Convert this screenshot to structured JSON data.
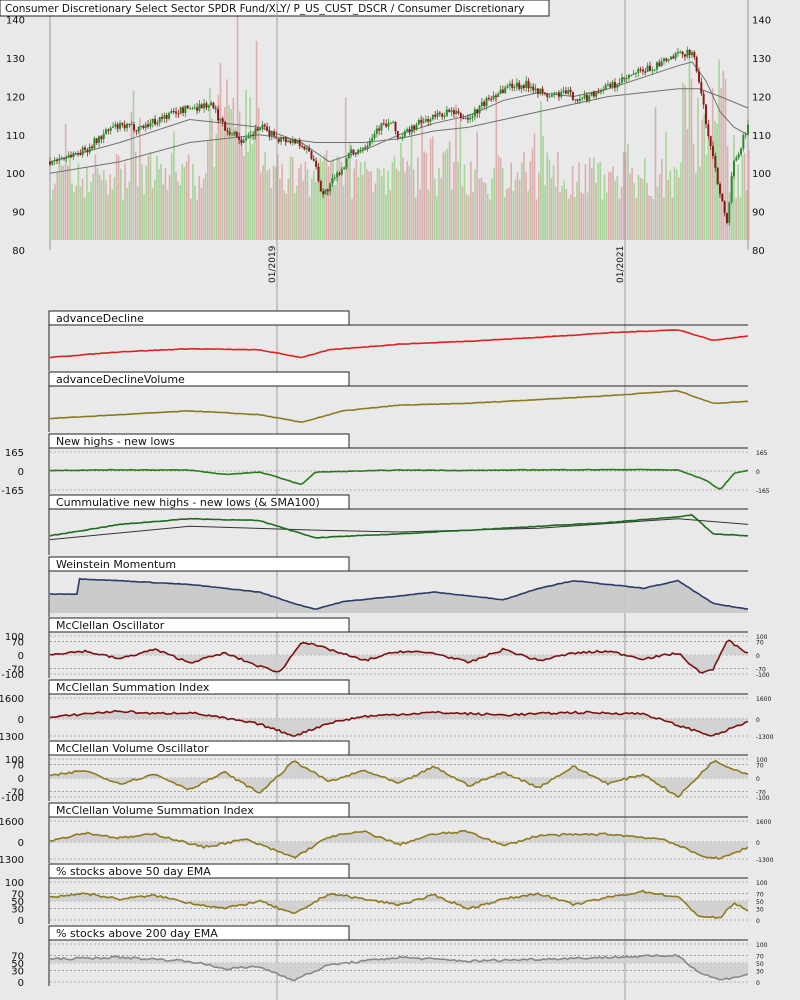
{
  "chart_data": [
    {
      "id": "price",
      "type": "candlestick",
      "title": "Consumer Discretionary Select Sector SPDR Fund/XLY/ P_US_CUST_DSCR / Consumer Discretionary",
      "x_ticks": [
        "01/2019",
        "01/2021"
      ],
      "y_ticks": [
        80,
        90,
        100,
        110,
        120,
        130,
        140
      ],
      "ylim": [
        80,
        142
      ],
      "close_path": [
        [
          0,
          103
        ],
        [
          0.05,
          106
        ],
        [
          0.09,
          112
        ],
        [
          0.13,
          112
        ],
        [
          0.18,
          116
        ],
        [
          0.2,
          117
        ],
        [
          0.23,
          118
        ],
        [
          0.25,
          112
        ],
        [
          0.28,
          108
        ],
        [
          0.3,
          112
        ],
        [
          0.33,
          109
        ],
        [
          0.36,
          108
        ],
        [
          0.38,
          103
        ],
        [
          0.39,
          94
        ],
        [
          0.41,
          99
        ],
        [
          0.43,
          105
        ],
        [
          0.45,
          107
        ],
        [
          0.47,
          112
        ],
        [
          0.49,
          113
        ],
        [
          0.5,
          109
        ],
        [
          0.52,
          112
        ],
        [
          0.54,
          114
        ],
        [
          0.57,
          116
        ],
        [
          0.6,
          114
        ],
        [
          0.62,
          118
        ],
        [
          0.64,
          121
        ],
        [
          0.66,
          123
        ],
        [
          0.69,
          123
        ],
        [
          0.71,
          120
        ],
        [
          0.74,
          121
        ],
        [
          0.76,
          119
        ],
        [
          0.79,
          122
        ],
        [
          0.81,
          123
        ],
        [
          0.84,
          126
        ],
        [
          0.87,
          128
        ],
        [
          0.89,
          130
        ],
        [
          0.92,
          132
        ],
        [
          0.93,
          124
        ],
        [
          0.94,
          113
        ],
        [
          0.96,
          95
        ],
        [
          0.97,
          88
        ],
        [
          0.98,
          104
        ],
        [
          0.99,
          107
        ],
        [
          1,
          113
        ]
      ],
      "ma_short_path": [
        [
          0,
          103
        ],
        [
          0.1,
          108
        ],
        [
          0.2,
          114
        ],
        [
          0.25,
          113
        ],
        [
          0.3,
          112
        ],
        [
          0.36,
          108
        ],
        [
          0.4,
          103
        ],
        [
          0.45,
          106
        ],
        [
          0.5,
          110
        ],
        [
          0.55,
          113
        ],
        [
          0.6,
          115
        ],
        [
          0.65,
          119
        ],
        [
          0.7,
          121
        ],
        [
          0.75,
          120
        ],
        [
          0.8,
          122
        ],
        [
          0.85,
          125
        ],
        [
          0.9,
          128
        ],
        [
          0.92,
          129
        ],
        [
          0.94,
          124
        ],
        [
          0.96,
          116
        ],
        [
          0.98,
          112
        ],
        [
          1,
          110
        ]
      ],
      "ma_long_path": [
        [
          0,
          100
        ],
        [
          0.1,
          103
        ],
        [
          0.2,
          108
        ],
        [
          0.3,
          110
        ],
        [
          0.38,
          108
        ],
        [
          0.45,
          108
        ],
        [
          0.5,
          109
        ],
        [
          0.55,
          111
        ],
        [
          0.6,
          112
        ],
        [
          0.65,
          114
        ],
        [
          0.7,
          116
        ],
        [
          0.75,
          118
        ],
        [
          0.8,
          120
        ],
        [
          0.85,
          121
        ],
        [
          0.9,
          122
        ],
        [
          0.93,
          122
        ],
        [
          0.96,
          120
        ],
        [
          1,
          117
        ]
      ],
      "colors": {
        "up": "#2a8a2a",
        "down": "#8a1a1a",
        "ma": "#707070",
        "vol_up": "#9ccf8c",
        "vol_down": "#d9a5a5"
      }
    },
    {
      "id": "ad",
      "type": "line",
      "title": "advanceDecline",
      "color": "#e02020",
      "path": [
        [
          0,
          0.25
        ],
        [
          0.1,
          0.4
        ],
        [
          0.2,
          0.48
        ],
        [
          0.3,
          0.45
        ],
        [
          0.36,
          0.25
        ],
        [
          0.4,
          0.45
        ],
        [
          0.5,
          0.6
        ],
        [
          0.6,
          0.68
        ],
        [
          0.7,
          0.78
        ],
        [
          0.8,
          0.9
        ],
        [
          0.9,
          0.98
        ],
        [
          0.95,
          0.7
        ],
        [
          1,
          0.82
        ]
      ],
      "annotations": []
    },
    {
      "id": "adv",
      "type": "line",
      "title": "advanceDeclineVolume",
      "color": "#8d7a1f",
      "path": [
        [
          0,
          0.25
        ],
        [
          0.1,
          0.35
        ],
        [
          0.2,
          0.45
        ],
        [
          0.3,
          0.35
        ],
        [
          0.36,
          0.15
        ],
        [
          0.42,
          0.45
        ],
        [
          0.5,
          0.6
        ],
        [
          0.6,
          0.65
        ],
        [
          0.7,
          0.75
        ],
        [
          0.8,
          0.85
        ],
        [
          0.9,
          0.98
        ],
        [
          0.95,
          0.65
        ],
        [
          1,
          0.7
        ]
      ]
    },
    {
      "id": "nhnl",
      "type": "line",
      "title": "New highs - new lows",
      "color": "#2a7a1a",
      "ylim": [
        -165,
        165
      ],
      "left_ticks": [
        "165",
        "0",
        "-165"
      ],
      "right_ticks": [
        "165",
        "0",
        "-165"
      ],
      "path": [
        [
          0,
          5
        ],
        [
          0.1,
          10
        ],
        [
          0.2,
          8
        ],
        [
          0.25,
          -30
        ],
        [
          0.3,
          -10
        ],
        [
          0.33,
          -60
        ],
        [
          0.36,
          -120
        ],
        [
          0.38,
          -10
        ],
        [
          0.5,
          8
        ],
        [
          0.6,
          5
        ],
        [
          0.7,
          10
        ],
        [
          0.85,
          12
        ],
        [
          0.9,
          8
        ],
        [
          0.94,
          -80
        ],
        [
          0.96,
          -165
        ],
        [
          0.98,
          -20
        ],
        [
          1,
          5
        ]
      ]
    },
    {
      "id": "cnhnl",
      "type": "line",
      "title": "Cummulative new highs - new lows (& SMA100)",
      "color": "#1f6a1f",
      "sma_color": "#333333",
      "path": [
        [
          0,
          0.4
        ],
        [
          0.1,
          0.7
        ],
        [
          0.2,
          0.85
        ],
        [
          0.3,
          0.8
        ],
        [
          0.38,
          0.35
        ],
        [
          0.5,
          0.45
        ],
        [
          0.6,
          0.55
        ],
        [
          0.7,
          0.65
        ],
        [
          0.8,
          0.75
        ],
        [
          0.9,
          0.9
        ],
        [
          0.92,
          0.95
        ],
        [
          0.95,
          0.45
        ],
        [
          1,
          0.4
        ]
      ],
      "sma_path": [
        [
          0,
          0.3
        ],
        [
          0.2,
          0.65
        ],
        [
          0.38,
          0.55
        ],
        [
          0.5,
          0.5
        ],
        [
          0.7,
          0.6
        ],
        [
          0.9,
          0.85
        ],
        [
          1,
          0.7
        ]
      ]
    },
    {
      "id": "wm",
      "type": "area",
      "title": "Weinstein Momentum",
      "color": "#2a3a6a",
      "fill": "#c8c8c8",
      "path": [
        [
          0,
          0.5
        ],
        [
          0.04,
          0.5
        ],
        [
          0.04,
          0.9
        ],
        [
          0.1,
          0.85
        ],
        [
          0.2,
          0.75
        ],
        [
          0.3,
          0.55
        ],
        [
          0.35,
          0.25
        ],
        [
          0.38,
          0.1
        ],
        [
          0.42,
          0.3
        ],
        [
          0.5,
          0.45
        ],
        [
          0.55,
          0.55
        ],
        [
          0.6,
          0.45
        ],
        [
          0.65,
          0.35
        ],
        [
          0.7,
          0.65
        ],
        [
          0.75,
          0.85
        ],
        [
          0.8,
          0.75
        ],
        [
          0.85,
          0.65
        ],
        [
          0.9,
          0.85
        ],
        [
          0.95,
          0.25
        ],
        [
          1,
          0.1
        ]
      ]
    },
    {
      "id": "mco",
      "type": "oscillator",
      "title": "McClellan Oscillator",
      "color": "#7a1010",
      "ylim": [
        -100,
        100
      ],
      "left_ticks": [
        "100",
        "70",
        "0",
        "-70",
        "-100"
      ],
      "right_ticks": [
        "100",
        "70",
        "0",
        "-70",
        "-100"
      ],
      "path": [
        [
          0,
          5
        ],
        [
          0.05,
          20
        ],
        [
          0.1,
          -20
        ],
        [
          0.15,
          30
        ],
        [
          0.2,
          -40
        ],
        [
          0.25,
          10
        ],
        [
          0.3,
          -60
        ],
        [
          0.33,
          -90
        ],
        [
          0.36,
          70
        ],
        [
          0.4,
          30
        ],
        [
          0.45,
          -30
        ],
        [
          0.5,
          20
        ],
        [
          0.55,
          10
        ],
        [
          0.6,
          -40
        ],
        [
          0.65,
          30
        ],
        [
          0.7,
          -30
        ],
        [
          0.75,
          10
        ],
        [
          0.8,
          20
        ],
        [
          0.85,
          -20
        ],
        [
          0.9,
          10
        ],
        [
          0.93,
          -90
        ],
        [
          0.95,
          -80
        ],
        [
          0.97,
          80
        ],
        [
          1,
          10
        ]
      ]
    },
    {
      "id": "msi",
      "type": "oscillator",
      "title": "McClellan Summation Index",
      "color": "#7a1010",
      "ylim": [
        -1300,
        1600
      ],
      "left_ticks": [
        "1600",
        "0",
        "-1300"
      ],
      "right_ticks": [
        "1600",
        "0",
        "-1300"
      ],
      "path": [
        [
          0,
          100
        ],
        [
          0.05,
          400
        ],
        [
          0.1,
          600
        ],
        [
          0.15,
          400
        ],
        [
          0.2,
          500
        ],
        [
          0.3,
          -400
        ],
        [
          0.35,
          -1300
        ],
        [
          0.4,
          -300
        ],
        [
          0.45,
          200
        ],
        [
          0.55,
          500
        ],
        [
          0.65,
          300
        ],
        [
          0.75,
          500
        ],
        [
          0.85,
          400
        ],
        [
          0.9,
          -500
        ],
        [
          0.95,
          -1300
        ],
        [
          1,
          -200
        ]
      ]
    },
    {
      "id": "mvo",
      "type": "oscillator",
      "title": "McClellan Volume Oscillator",
      "color": "#8d7a1f",
      "ylim": [
        -100,
        100
      ],
      "left_ticks": [
        "100",
        "70",
        "0",
        "-70",
        "-100"
      ],
      "right_ticks": [
        "100",
        "70",
        "0",
        "-70",
        "-100"
      ],
      "path": [
        [
          0,
          10
        ],
        [
          0.05,
          40
        ],
        [
          0.1,
          -30
        ],
        [
          0.15,
          20
        ],
        [
          0.2,
          -60
        ],
        [
          0.25,
          30
        ],
        [
          0.3,
          -80
        ],
        [
          0.35,
          90
        ],
        [
          0.4,
          -20
        ],
        [
          0.45,
          40
        ],
        [
          0.5,
          -30
        ],
        [
          0.55,
          60
        ],
        [
          0.6,
          -40
        ],
        [
          0.65,
          30
        ],
        [
          0.7,
          -50
        ],
        [
          0.75,
          60
        ],
        [
          0.8,
          -30
        ],
        [
          0.85,
          20
        ],
        [
          0.9,
          -100
        ],
        [
          0.95,
          90
        ],
        [
          1,
          20
        ]
      ]
    },
    {
      "id": "mvsi",
      "type": "oscillator",
      "title": "McClellan Volume Summation Index",
      "color": "#8d7a1f",
      "ylim": [
        -1300,
        1600
      ],
      "left_ticks": [
        "1600",
        "0",
        "-1300"
      ],
      "right_ticks": [
        "1600",
        "0",
        "-1300"
      ],
      "path": [
        [
          0,
          100
        ],
        [
          0.05,
          700
        ],
        [
          0.1,
          300
        ],
        [
          0.15,
          600
        ],
        [
          0.22,
          -400
        ],
        [
          0.28,
          200
        ],
        [
          0.35,
          -1200
        ],
        [
          0.4,
          400
        ],
        [
          0.45,
          800
        ],
        [
          0.5,
          -200
        ],
        [
          0.55,
          600
        ],
        [
          0.6,
          800
        ],
        [
          0.65,
          -300
        ],
        [
          0.7,
          500
        ],
        [
          0.8,
          600
        ],
        [
          0.88,
          200
        ],
        [
          0.93,
          -1000
        ],
        [
          0.96,
          -1300
        ],
        [
          1,
          -400
        ]
      ]
    },
    {
      "id": "pct50",
      "type": "oscillator",
      "title": "% stocks above 50 day EMA",
      "color": "#8d7a1f",
      "ylim": [
        0,
        100
      ],
      "left_ticks": [
        "100",
        "70",
        "50",
        "30",
        "0"
      ],
      "right_ticks": [
        "100",
        "70",
        "50",
        "30",
        "0"
      ],
      "path": [
        [
          0,
          60
        ],
        [
          0.05,
          70
        ],
        [
          0.1,
          55
        ],
        [
          0.15,
          65
        ],
        [
          0.2,
          45
        ],
        [
          0.25,
          30
        ],
        [
          0.3,
          50
        ],
        [
          0.35,
          15
        ],
        [
          0.4,
          70
        ],
        [
          0.45,
          55
        ],
        [
          0.5,
          40
        ],
        [
          0.55,
          65
        ],
        [
          0.6,
          30
        ],
        [
          0.65,
          55
        ],
        [
          0.7,
          70
        ],
        [
          0.75,
          40
        ],
        [
          0.8,
          60
        ],
        [
          0.85,
          75
        ],
        [
          0.9,
          60
        ],
        [
          0.93,
          10
        ],
        [
          0.96,
          5
        ],
        [
          0.98,
          45
        ],
        [
          1,
          25
        ]
      ]
    },
    {
      "id": "pct200",
      "type": "oscillator",
      "title": "% stocks above 200 day EMA",
      "color": "#888888",
      "ylim": [
        0,
        100
      ],
      "left_ticks": [
        "70",
        "50",
        "30",
        "0"
      ],
      "right_ticks": [
        "100",
        "70",
        "50",
        "30",
        "0"
      ],
      "path": [
        [
          0,
          60
        ],
        [
          0.1,
          65
        ],
        [
          0.2,
          55
        ],
        [
          0.25,
          35
        ],
        [
          0.3,
          40
        ],
        [
          0.35,
          5
        ],
        [
          0.4,
          45
        ],
        [
          0.5,
          65
        ],
        [
          0.6,
          55
        ],
        [
          0.7,
          60
        ],
        [
          0.8,
          65
        ],
        [
          0.9,
          70
        ],
        [
          0.93,
          25
        ],
        [
          0.96,
          5
        ],
        [
          1,
          20
        ]
      ]
    }
  ]
}
